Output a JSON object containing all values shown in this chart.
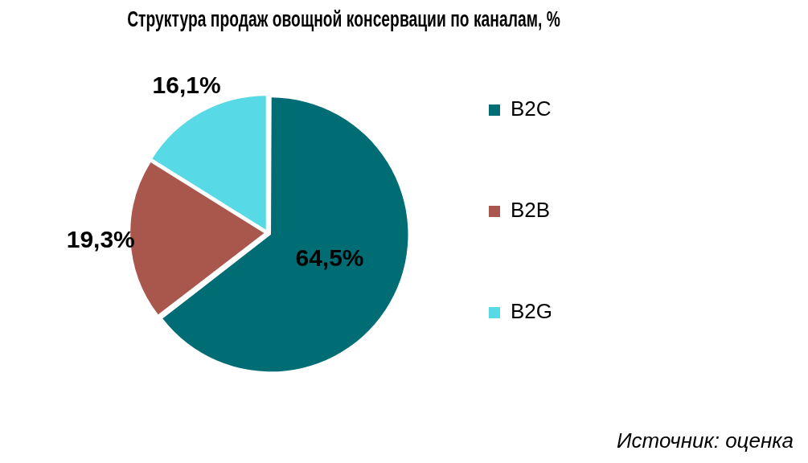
{
  "chart_data": {
    "type": "pie",
    "title": "Структура продаж овощной консервации по каналам, %",
    "categories": [
      "B2C",
      "B2B",
      "B2G"
    ],
    "values": [
      64.5,
      19.3,
      16.1
    ],
    "colors": [
      "#006d75",
      "#a9574d",
      "#58d9e6"
    ],
    "value_labels": [
      "64,5%",
      "19,3%",
      "16,1%"
    ],
    "legend": "right",
    "annotations": [
      "Источник: оценка"
    ]
  }
}
